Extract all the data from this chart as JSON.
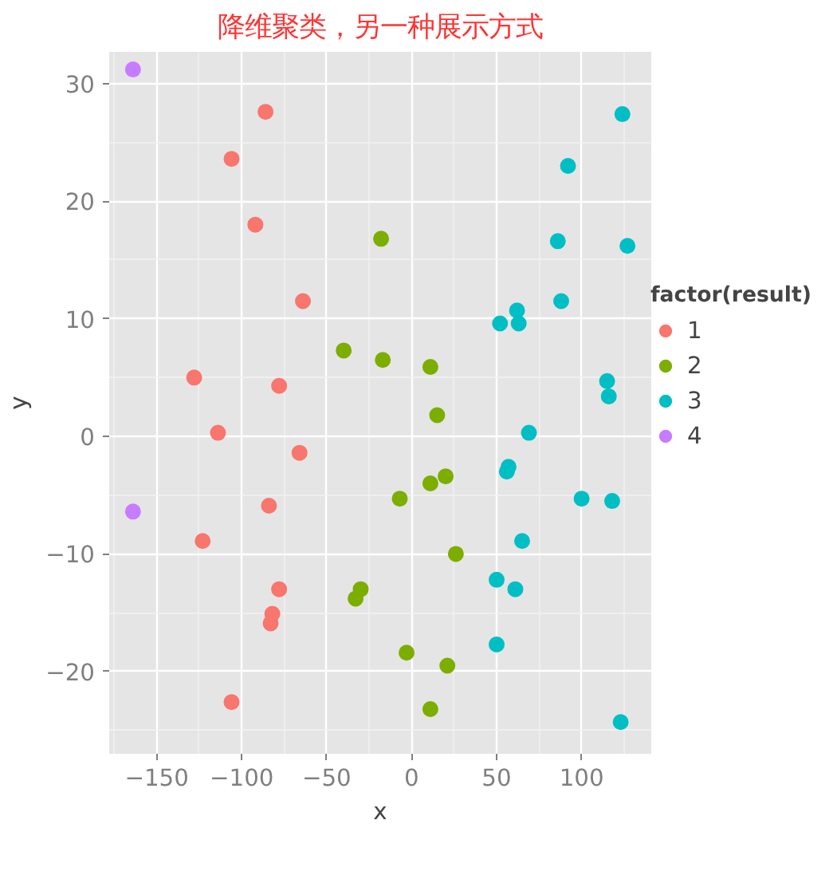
{
  "chart_data": {
    "type": "scatter",
    "title": "降维聚类，另一种展示方式",
    "xlabel": "x",
    "ylabel": "y",
    "legend_title": "factor(result)",
    "legend": "right",
    "grid": true,
    "marker": "circle",
    "xlim": [
      -178,
      141
    ],
    "ylim": [
      -27,
      32.7
    ],
    "xticks": [
      -150,
      -100,
      -50,
      0,
      50,
      100
    ],
    "yticks": [
      -20,
      -10,
      0,
      10,
      20,
      30
    ],
    "series": [
      {
        "name": "1",
        "color": "#f8766d",
        "x": [
          -86,
          -106,
          -92,
          -64,
          -128,
          -78,
          -114,
          -66,
          -84,
          -123,
          -78,
          -82,
          -83,
          -106
        ],
        "values": [
          27.6,
          23.6,
          18.0,
          11.5,
          5.0,
          4.3,
          0.3,
          -1.4,
          -5.9,
          -8.9,
          -13.0,
          -15.1,
          -15.9,
          -22.6
        ]
      },
      {
        "name": "2",
        "color": "#7cae00",
        "x": [
          -18,
          -40,
          -17,
          11,
          15,
          20,
          11,
          -7,
          -30,
          -33,
          26,
          -3,
          21,
          11
        ],
        "values": [
          16.8,
          7.3,
          6.5,
          5.9,
          1.8,
          -3.4,
          -4.0,
          -5.3,
          -13.0,
          -13.8,
          -10.0,
          -18.4,
          -19.5,
          -23.2
        ]
      },
      {
        "name": "3",
        "color": "#00bfc4",
        "x": [
          124,
          92,
          86,
          127,
          62,
          88,
          52,
          63,
          115,
          116,
          69,
          56,
          57,
          100,
          118,
          65,
          50,
          61,
          50,
          123
        ],
        "values": [
          27.4,
          23.0,
          16.6,
          16.2,
          10.7,
          11.5,
          9.6,
          9.6,
          4.7,
          3.4,
          0.3,
          -3.0,
          -2.6,
          -5.3,
          -5.5,
          -8.9,
          -12.2,
          -13.0,
          -17.7,
          -24.3
        ]
      },
      {
        "name": "4",
        "color": "#c77cff",
        "x": [
          -164,
          -164
        ],
        "values": [
          31.2,
          -6.4
        ]
      }
    ]
  }
}
